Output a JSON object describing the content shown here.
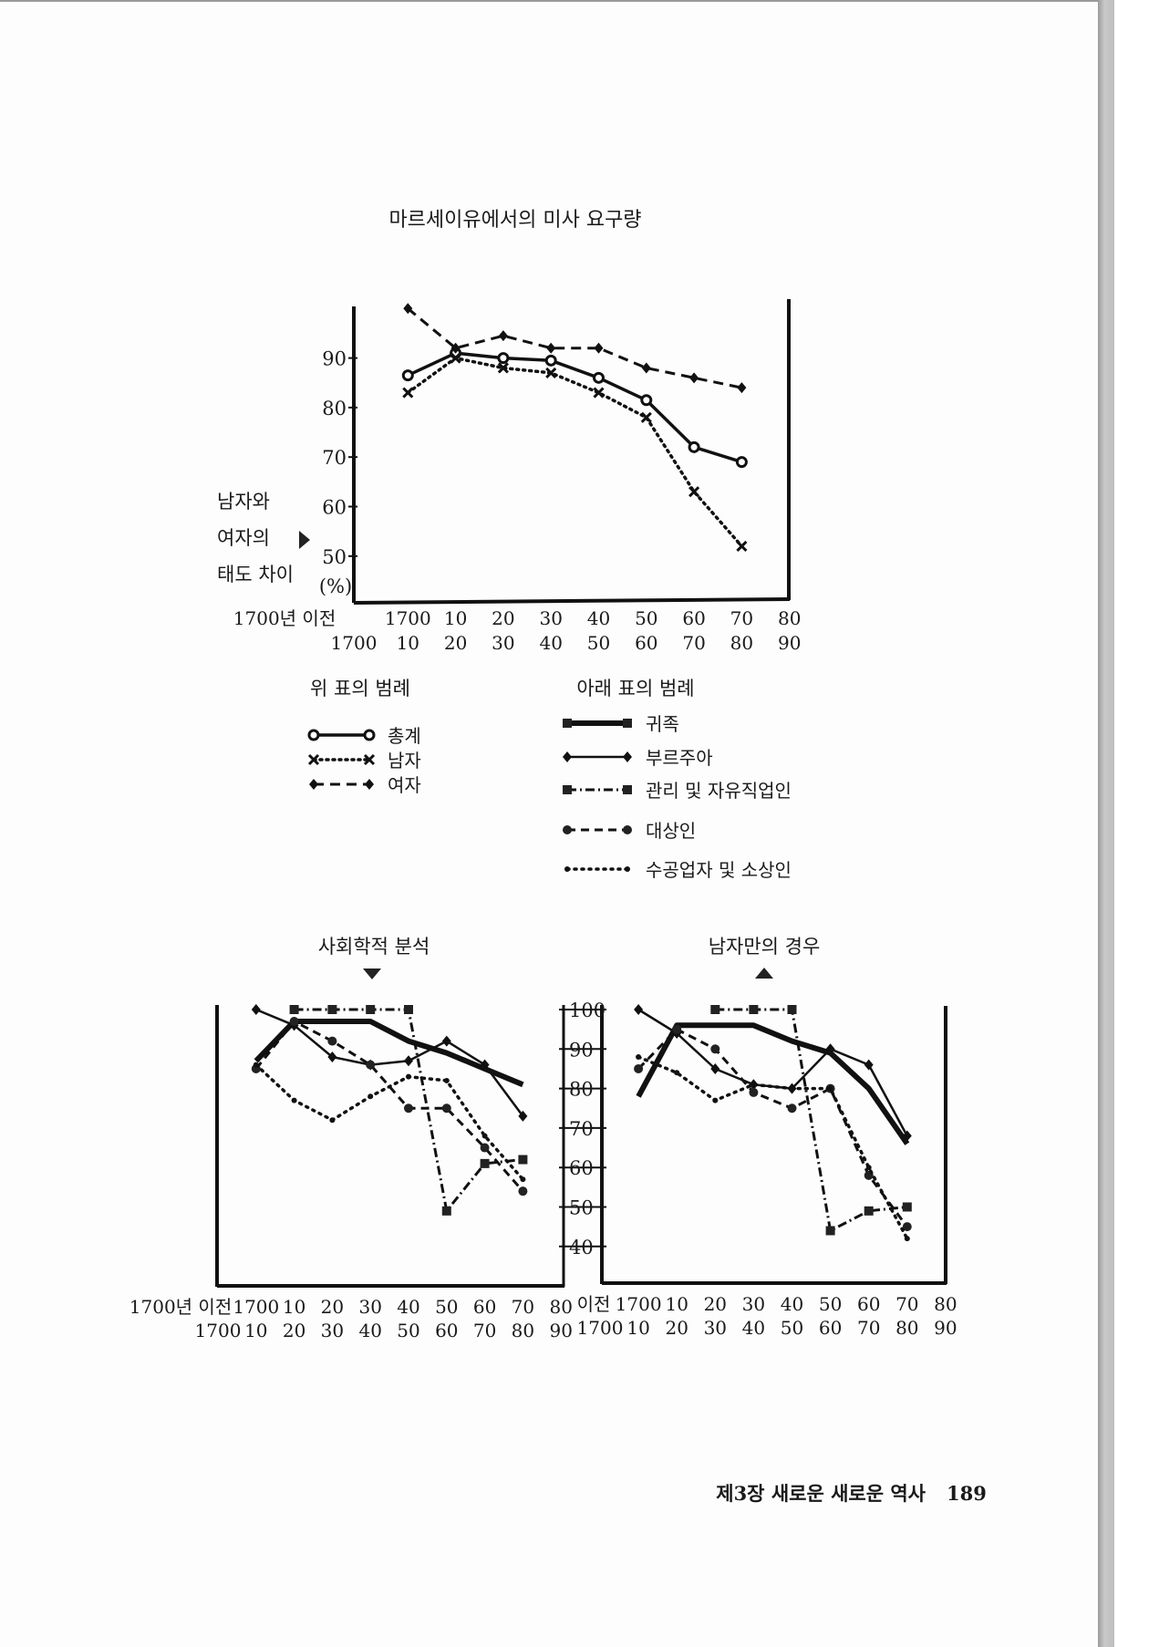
{
  "footer": {
    "running_head": "제3장 새로운 새로운 역사",
    "page_number": "189"
  },
  "legends": {
    "upper": {
      "title": "위 표의 범례",
      "items": [
        "총계",
        "남자",
        "여자"
      ]
    },
    "lower": {
      "title": "아래 표의 범례",
      "items": [
        "귀족",
        "부르주아",
        "관리 및 자유직업인",
        "대상인",
        "수공업자 및 소상인"
      ]
    }
  },
  "chart_data": [
    {
      "type": "line",
      "title": "마르세이유에서의 미사 요구량",
      "ylabel": [
        "남자와",
        "여자의",
        "태도 차이"
      ],
      "yunit": "(%)",
      "yticks": [
        "50",
        "60",
        "70",
        "80",
        "90"
      ],
      "ylim": [
        41,
        100
      ],
      "x_labels_top": [
        "1700년 이전",
        "1700",
        "10",
        "20",
        "30",
        "40",
        "50",
        "60",
        "70",
        "80"
      ],
      "x_labels_bottom": [
        "1700",
        "10",
        "20",
        "30",
        "40",
        "50",
        "60",
        "70",
        "80",
        "90"
      ],
      "categories": [
        "1700-10",
        "1710-20",
        "1720-30",
        "1730-40",
        "1740-50",
        "1750-60",
        "1760-70",
        "1770-80"
      ],
      "series": [
        {
          "name": "총계",
          "values": [
            86.5,
            91,
            90,
            89.5,
            86,
            81.5,
            72,
            69
          ]
        },
        {
          "name": "남자",
          "values": [
            83,
            90,
            88,
            87,
            83,
            78,
            63,
            52
          ]
        },
        {
          "name": "여자",
          "values": [
            100,
            92,
            94.5,
            92,
            92,
            88,
            86,
            84
          ]
        }
      ]
    },
    {
      "type": "line",
      "title": "사회학적 분석",
      "yticks": [
        "40",
        "50",
        "60",
        "70",
        "80",
        "90",
        "100"
      ],
      "ylim": [
        30,
        100
      ],
      "x_labels_top": [
        "1700년 이전",
        "1700",
        "10",
        "20",
        "30",
        "40",
        "50",
        "60",
        "70",
        "80"
      ],
      "x_labels_bottom": [
        "1700",
        "10",
        "20",
        "30",
        "40",
        "50",
        "60",
        "70",
        "80",
        "90"
      ],
      "categories": [
        "1700-10",
        "1710-20",
        "1720-30",
        "1730-40",
        "1740-50",
        "1750-60",
        "1760-70",
        "1770-80"
      ],
      "series": [
        {
          "name": "귀족",
          "values": [
            87,
            97,
            97,
            97,
            92,
            89,
            85,
            81
          ]
        },
        {
          "name": "부르주아",
          "values": [
            100,
            96,
            88,
            86,
            87,
            92,
            86,
            73
          ]
        },
        {
          "name": "관리 및 자유직업인",
          "values": [
            null,
            100,
            100,
            100,
            100,
            49,
            61,
            62
          ]
        },
        {
          "name": "대상인",
          "values": [
            85,
            97,
            92,
            86,
            75,
            75,
            65,
            54
          ]
        },
        {
          "name": "수공업자 및 소상인",
          "values": [
            86,
            77,
            72,
            78,
            83,
            82,
            68,
            57
          ]
        }
      ]
    },
    {
      "type": "line",
      "title": "남자만의 경우",
      "ylim": [
        30,
        100
      ],
      "x_labels_top": [
        "이전",
        "1700",
        "10",
        "20",
        "30",
        "40",
        "50",
        "60",
        "70",
        "80"
      ],
      "x_labels_bottom": [
        "1700",
        "10",
        "20",
        "30",
        "40",
        "50",
        "60",
        "70",
        "80",
        "90"
      ],
      "categories": [
        "1700-10",
        "1710-20",
        "1720-30",
        "1730-40",
        "1740-50",
        "1750-60",
        "1760-70",
        "1770-80"
      ],
      "series": [
        {
          "name": "귀족",
          "values": [
            78,
            96,
            96,
            96,
            92,
            89,
            80,
            66
          ]
        },
        {
          "name": "부르주아",
          "values": [
            100,
            94,
            85,
            81,
            80,
            90,
            86,
            68
          ]
        },
        {
          "name": "관리 및 자유직업인",
          "values": [
            null,
            null,
            100,
            100,
            100,
            44,
            49,
            50
          ]
        },
        {
          "name": "대상인",
          "values": [
            85,
            95,
            90,
            79,
            75,
            80,
            58,
            45
          ]
        },
        {
          "name": "수공업자 및 소상인",
          "values": [
            88,
            84,
            77,
            81,
            80,
            80,
            60,
            42
          ]
        }
      ]
    }
  ]
}
